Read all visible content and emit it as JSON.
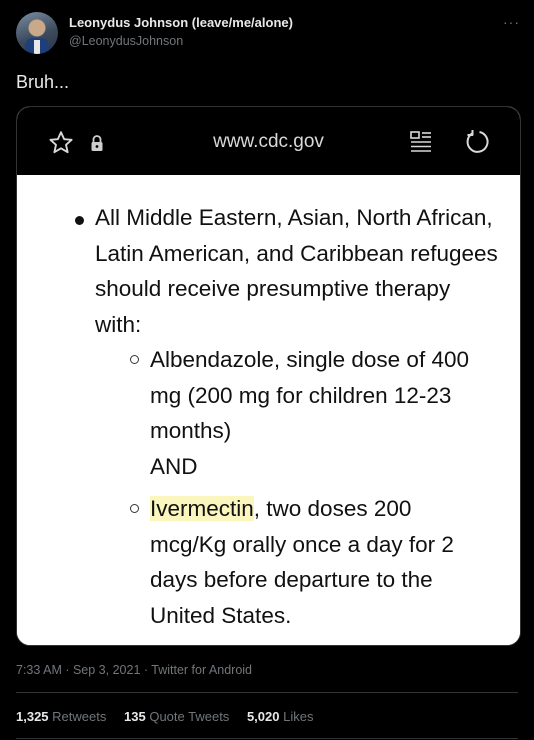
{
  "author": {
    "name": "Leonydus Johnson (leave/me/alone)",
    "handle": "@LeonydusJohnson"
  },
  "more_icon": "···",
  "tweet": {
    "text": "Bruh..."
  },
  "media": {
    "browser": {
      "url": "www.cdc.gov",
      "icons": [
        "star-icon",
        "lock-icon",
        "reader-mode-icon",
        "reload-icon"
      ]
    },
    "content": {
      "main_bullet": "All Middle Eastern, Asian, North African, Latin American, and Caribbean refugees should receive presumptive therapy with:",
      "sub1_line1": "Albendazole, single dose of 400",
      "sub1_line2": "mg (200 mg for children 12-23",
      "sub1_line3": "months)",
      "sub1_line4": "AND",
      "sub2_highlight": "Ivermectin",
      "sub2_rest": ", two doses 200",
      "sub2_line2": "mcg/Kg orally once a day for 2",
      "sub2_line3": "days before departure to the",
      "sub2_line4": "United States.",
      "highlight_color": "#fbf6bd"
    }
  },
  "meta": "7:33 AM · Sep 3, 2021 · Twitter for Android",
  "stats": {
    "retweets_count": "1,325",
    "retweets_label": "Retweets",
    "quotes_count": "135",
    "quotes_label": "Quote Tweets",
    "likes_count": "5,020",
    "likes_label": "Likes"
  },
  "colors": {
    "background": "#000000",
    "text_primary": "#e7e9ea",
    "text_secondary": "#71767b",
    "divider": "#2f3336"
  }
}
